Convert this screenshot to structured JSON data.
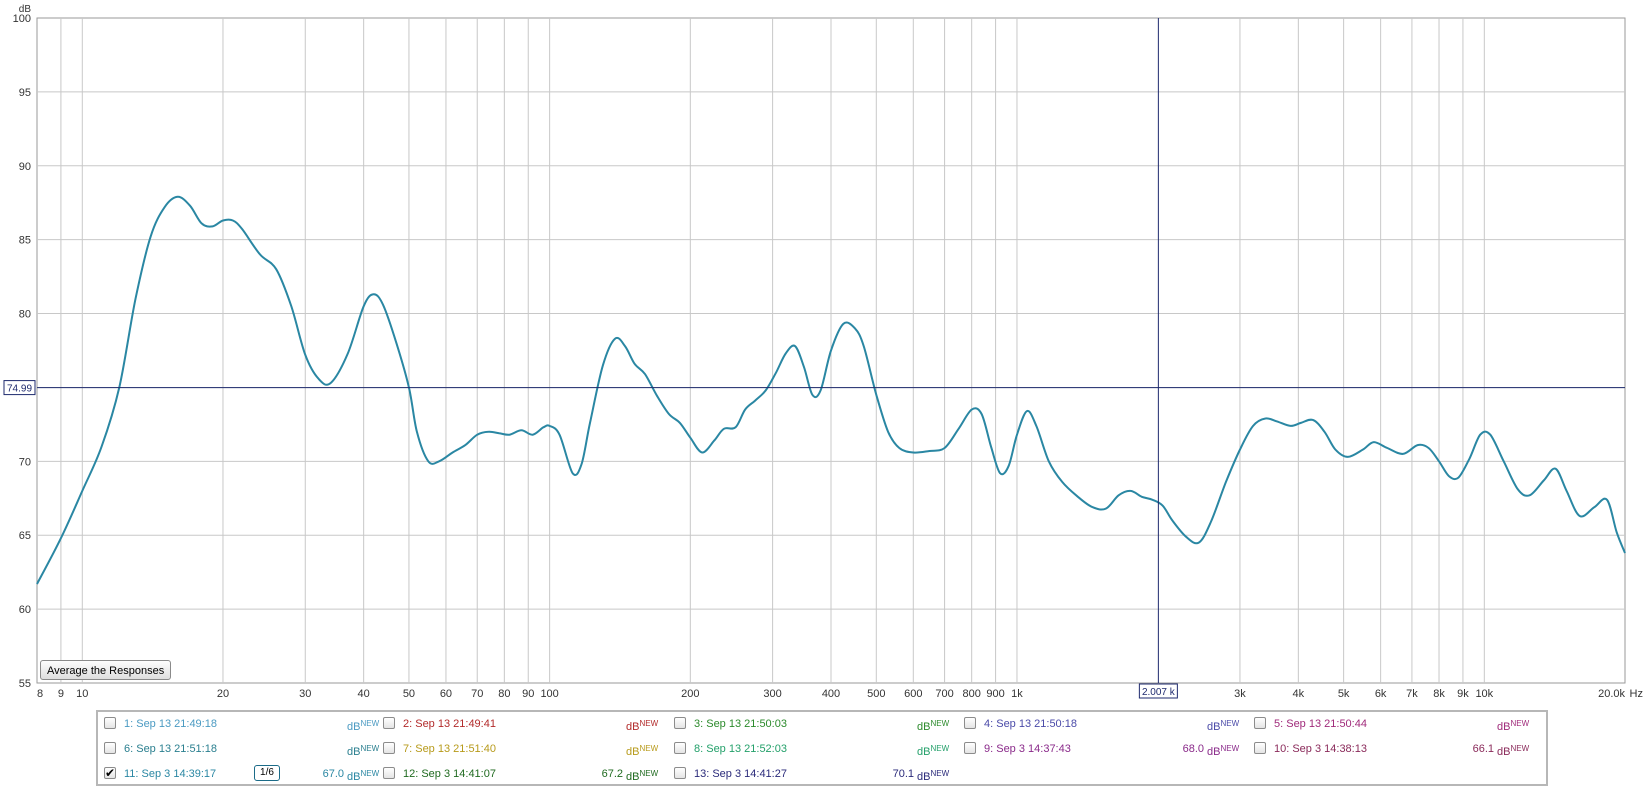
{
  "chart_data": {
    "type": "line",
    "ylabel": "dB",
    "xunit": "Hz",
    "xscale": "log",
    "xlim": [
      8,
      20000
    ],
    "ylim": [
      55,
      100
    ],
    "yticks": [
      55,
      60,
      65,
      70,
      75,
      80,
      85,
      90,
      95,
      100
    ],
    "xticks": [
      {
        "v": 8,
        "label": "8"
      },
      {
        "v": 9,
        "label": "9"
      },
      {
        "v": 10,
        "label": "10"
      },
      {
        "v": 20,
        "label": "20"
      },
      {
        "v": 30,
        "label": "30"
      },
      {
        "v": 40,
        "label": "40"
      },
      {
        "v": 50,
        "label": "50"
      },
      {
        "v": 60,
        "label": "60"
      },
      {
        "v": 70,
        "label": "70"
      },
      {
        "v": 80,
        "label": "80"
      },
      {
        "v": 90,
        "label": "90"
      },
      {
        "v": 100,
        "label": "100"
      },
      {
        "v": 200,
        "label": "200"
      },
      {
        "v": 300,
        "label": "300"
      },
      {
        "v": 400,
        "label": "400"
      },
      {
        "v": 500,
        "label": "500"
      },
      {
        "v": 600,
        "label": "600"
      },
      {
        "v": 700,
        "label": "700"
      },
      {
        "v": 800,
        "label": "800"
      },
      {
        "v": 900,
        "label": "900"
      },
      {
        "v": 1000,
        "label": "1k"
      },
      {
        "v": 3000,
        "label": "3k"
      },
      {
        "v": 4000,
        "label": "4k"
      },
      {
        "v": 5000,
        "label": "5k"
      },
      {
        "v": 6000,
        "label": "6k"
      },
      {
        "v": 7000,
        "label": "7k"
      },
      {
        "v": 8000,
        "label": "8k"
      },
      {
        "v": 9000,
        "label": "9k"
      },
      {
        "v": 10000,
        "label": "10k"
      },
      {
        "v": 20000,
        "label": "20.0k"
      }
    ],
    "grid": true,
    "cursor": {
      "x": 2007,
      "x_label": "2.007 k",
      "y": 74.99,
      "y_label": "74.99"
    },
    "series": [
      {
        "name": "11: Sep 3 14:39:17",
        "color": "#2a87a3",
        "points": [
          [
            8,
            61.7
          ],
          [
            9,
            64.8
          ],
          [
            10,
            68.0
          ],
          [
            11,
            71.0
          ],
          [
            12,
            75.0
          ],
          [
            13,
            81.0
          ],
          [
            14,
            85.2
          ],
          [
            15,
            87.2
          ],
          [
            16,
            87.9
          ],
          [
            17,
            87.3
          ],
          [
            18,
            86.1
          ],
          [
            19,
            85.9
          ],
          [
            20,
            86.3
          ],
          [
            21,
            86.3
          ],
          [
            22,
            85.7
          ],
          [
            24,
            84.0
          ],
          [
            26,
            83.0
          ],
          [
            28,
            80.5
          ],
          [
            30,
            77.2
          ],
          [
            32,
            75.6
          ],
          [
            34,
            75.3
          ],
          [
            37,
            77.3
          ],
          [
            40,
            80.5
          ],
          [
            42,
            81.3
          ],
          [
            44,
            80.6
          ],
          [
            47,
            78.0
          ],
          [
            50,
            75.0
          ],
          [
            52,
            72.0
          ],
          [
            55,
            70.0
          ],
          [
            58,
            70.0
          ],
          [
            62,
            70.6
          ],
          [
            66,
            71.1
          ],
          [
            70,
            71.8
          ],
          [
            74,
            72.0
          ],
          [
            78,
            71.9
          ],
          [
            82,
            71.8
          ],
          [
            87,
            72.1
          ],
          [
            92,
            71.8
          ],
          [
            97,
            72.3
          ],
          [
            100,
            72.4
          ],
          [
            105,
            71.8
          ],
          [
            112,
            69.2
          ],
          [
            117,
            69.8
          ],
          [
            122,
            72.6
          ],
          [
            130,
            76.5
          ],
          [
            138,
            78.3
          ],
          [
            145,
            77.8
          ],
          [
            152,
            76.6
          ],
          [
            160,
            75.9
          ],
          [
            170,
            74.4
          ],
          [
            180,
            73.2
          ],
          [
            190,
            72.6
          ],
          [
            200,
            71.6
          ],
          [
            212,
            70.6
          ],
          [
            225,
            71.4
          ],
          [
            236,
            72.2
          ],
          [
            250,
            72.3
          ],
          [
            262,
            73.5
          ],
          [
            275,
            74.1
          ],
          [
            290,
            74.8
          ],
          [
            305,
            76.0
          ],
          [
            320,
            77.3
          ],
          [
            335,
            77.8
          ],
          [
            350,
            76.4
          ],
          [
            365,
            74.5
          ],
          [
            380,
            74.8
          ],
          [
            400,
            77.5
          ],
          [
            425,
            79.3
          ],
          [
            450,
            79.0
          ],
          [
            470,
            77.8
          ],
          [
            500,
            74.5
          ],
          [
            530,
            72.0
          ],
          [
            560,
            70.9
          ],
          [
            600,
            70.6
          ],
          [
            650,
            70.7
          ],
          [
            700,
            70.9
          ],
          [
            750,
            72.2
          ],
          [
            800,
            73.5
          ],
          [
            840,
            73.2
          ],
          [
            880,
            71.0
          ],
          [
            920,
            69.2
          ],
          [
            960,
            69.7
          ],
          [
            1000,
            71.8
          ],
          [
            1050,
            73.4
          ],
          [
            1100,
            72.4
          ],
          [
            1170,
            70.0
          ],
          [
            1250,
            68.6
          ],
          [
            1350,
            67.6
          ],
          [
            1450,
            66.9
          ],
          [
            1550,
            66.8
          ],
          [
            1650,
            67.7
          ],
          [
            1750,
            68.0
          ],
          [
            1850,
            67.6
          ],
          [
            1950,
            67.4
          ],
          [
            2050,
            67.0
          ],
          [
            2150,
            66.0
          ],
          [
            2300,
            64.9
          ],
          [
            2450,
            64.5
          ],
          [
            2600,
            65.9
          ],
          [
            2800,
            68.6
          ],
          [
            3000,
            70.8
          ],
          [
            3200,
            72.4
          ],
          [
            3400,
            72.9
          ],
          [
            3600,
            72.7
          ],
          [
            3850,
            72.4
          ],
          [
            4050,
            72.6
          ],
          [
            4300,
            72.8
          ],
          [
            4550,
            72.0
          ],
          [
            4800,
            70.8
          ],
          [
            5100,
            70.3
          ],
          [
            5500,
            70.8
          ],
          [
            5800,
            71.3
          ],
          [
            6200,
            70.9
          ],
          [
            6700,
            70.5
          ],
          [
            7200,
            71.1
          ],
          [
            7600,
            70.9
          ],
          [
            8000,
            70.0
          ],
          [
            8400,
            69.0
          ],
          [
            8800,
            68.9
          ],
          [
            9300,
            70.2
          ],
          [
            9800,
            71.8
          ],
          [
            10300,
            71.8
          ],
          [
            11000,
            70.0
          ],
          [
            11800,
            68.1
          ],
          [
            12500,
            67.7
          ],
          [
            13400,
            68.7
          ],
          [
            14200,
            69.5
          ],
          [
            15000,
            68.0
          ],
          [
            16000,
            66.3
          ],
          [
            17200,
            66.9
          ],
          [
            18300,
            67.4
          ],
          [
            19200,
            65.2
          ],
          [
            20000,
            63.8
          ]
        ]
      }
    ]
  },
  "buttons": {
    "average": "Average the Responses"
  },
  "legend": [
    {
      "label": "1: Sep 13 21:49:18",
      "color": "#4a9ac2",
      "checked": false,
      "value": "",
      "unit": "dB",
      "sup": "NEW"
    },
    {
      "label": "2: Sep 13 21:49:41",
      "color": "#b22a2a",
      "checked": false,
      "value": "",
      "unit": "dB",
      "sup": "NEW"
    },
    {
      "label": "3: Sep 13 21:50:03",
      "color": "#2b8a2b",
      "checked": false,
      "value": "",
      "unit": "dB",
      "sup": "NEW"
    },
    {
      "label": "4: Sep 13 21:50:18",
      "color": "#4a4aa8",
      "checked": false,
      "value": "",
      "unit": "dB",
      "sup": "NEW"
    },
    {
      "label": "5: Sep 13 21:50:44",
      "color": "#a02a7a",
      "checked": false,
      "value": "",
      "unit": "dB",
      "sup": "NEW"
    },
    {
      "label": "6: Sep 13 21:51:18",
      "color": "#2a7f8f",
      "checked": false,
      "value": "",
      "unit": "dB",
      "sup": "NEW"
    },
    {
      "label": "7: Sep 13 21:51:40",
      "color": "#b79a1a",
      "checked": false,
      "value": "",
      "unit": "dB",
      "sup": "NEW"
    },
    {
      "label": "8: Sep 13 21:52:03",
      "color": "#23a06a",
      "checked": false,
      "value": "",
      "unit": "dB",
      "sup": "NEW"
    },
    {
      "label": "9: Sep 3 14:37:43",
      "color": "#8a2a8a",
      "checked": false,
      "value": "68.0",
      "unit": "dB",
      "sup": "NEW"
    },
    {
      "label": "10: Sep 3 14:38:13",
      "color": "#8a2a5a",
      "checked": false,
      "value": "66.1",
      "unit": "dB",
      "sup": "NEW"
    },
    {
      "label": "11: Sep 3 14:39:17",
      "color": "#2a87a3",
      "checked": true,
      "value": "67.0",
      "unit": "dB",
      "sup": "NEW",
      "smoothing": "1/6"
    },
    {
      "label": "12: Sep 3 14:41:07",
      "color": "#1f6a1f",
      "checked": false,
      "value": "67.2",
      "unit": "dB",
      "sup": "NEW"
    },
    {
      "label": "13: Sep 3 14:41:27",
      "color": "#2a2a7a",
      "checked": false,
      "value": "70.1",
      "unit": "dB",
      "sup": "NEW"
    }
  ],
  "colors": {
    "grid": "#c8c8c8",
    "cursor": "#1e2a6e",
    "frame": "#9a9a9a"
  }
}
